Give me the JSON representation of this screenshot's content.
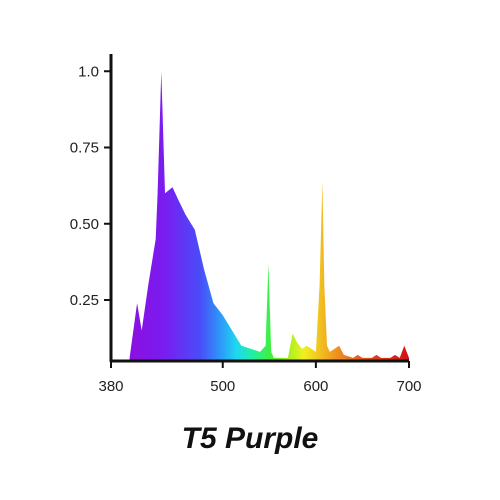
{
  "chart_data": {
    "type": "area",
    "title": "T5 Purple",
    "xlabel": "",
    "ylabel": "",
    "xlim": [
      380,
      700
    ],
    "ylim": [
      0.05,
      1.05
    ],
    "x_ticks": [
      380,
      500,
      600,
      700
    ],
    "y_ticks": [
      0.25,
      0.5,
      0.75,
      1.0
    ],
    "x_tick_labels": [
      "380",
      "500",
      "600",
      "700"
    ],
    "y_tick_labels": [
      "0.25",
      "0.50",
      "0.75",
      "1.0"
    ],
    "grid": false,
    "fill": "spectral rainbow gradient by wavelength",
    "series": [
      {
        "x": [
          400,
          408,
          413,
          420,
          428,
          430,
          434,
          438,
          446,
          452,
          460,
          470,
          480,
          490,
          500,
          520,
          540,
          546,
          549,
          552,
          555,
          560,
          570,
          575,
          580,
          585,
          590,
          600,
          604,
          607,
          609,
          612,
          615,
          625,
          630,
          640,
          645,
          650,
          660,
          665,
          670,
          680,
          685,
          690,
          695,
          700
        ],
        "y": [
          0.06,
          0.24,
          0.15,
          0.3,
          0.45,
          0.6,
          1.0,
          0.6,
          0.62,
          0.58,
          0.53,
          0.48,
          0.35,
          0.24,
          0.2,
          0.1,
          0.08,
          0.1,
          0.37,
          0.08,
          0.06,
          0.06,
          0.06,
          0.14,
          0.11,
          0.09,
          0.1,
          0.08,
          0.3,
          0.64,
          0.3,
          0.1,
          0.08,
          0.1,
          0.07,
          0.06,
          0.07,
          0.06,
          0.06,
          0.07,
          0.06,
          0.06,
          0.07,
          0.06,
          0.1,
          0.06
        ]
      }
    ]
  }
}
